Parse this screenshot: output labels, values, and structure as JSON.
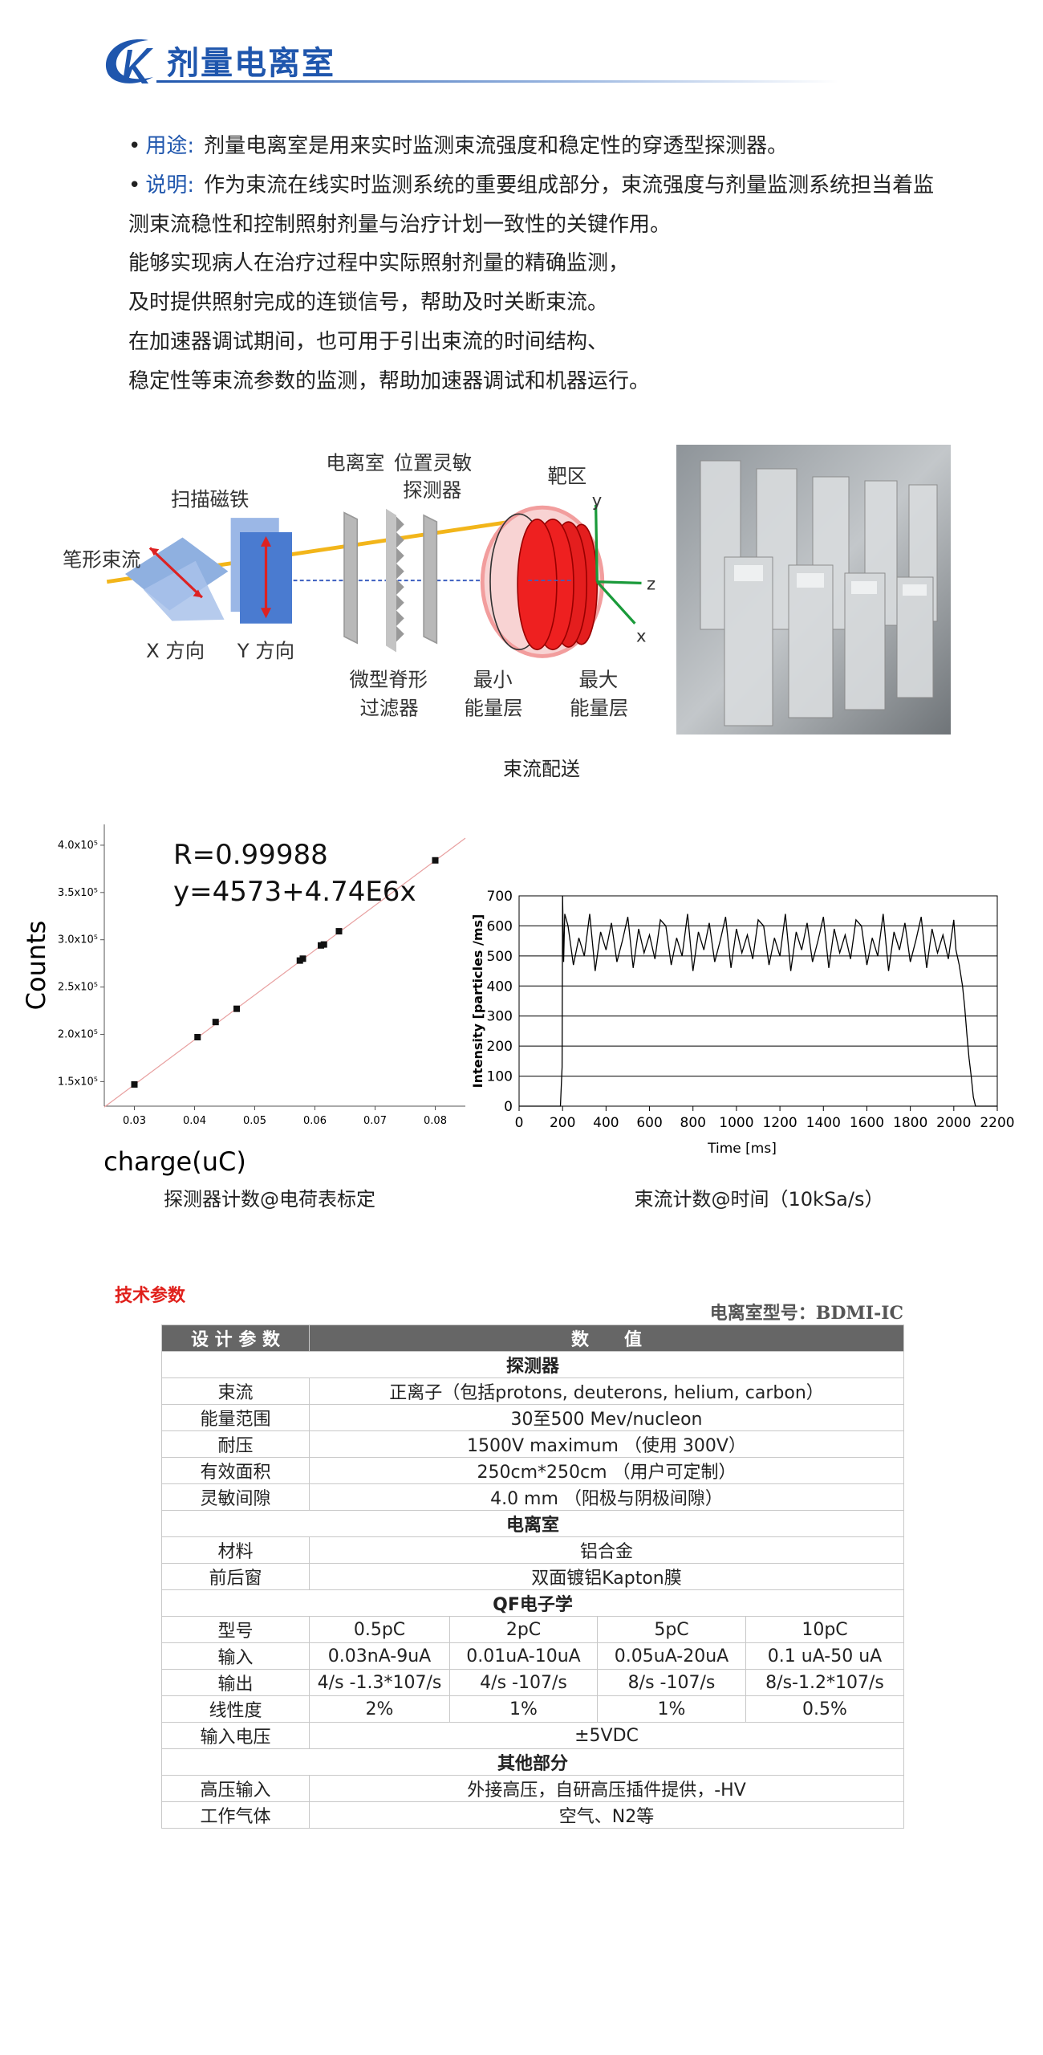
{
  "header": {
    "title": "剂量电离室"
  },
  "intro": {
    "items": [
      {
        "label": "用途:",
        "text": "剂量电离室是用来实时监测束流强度和稳定性的穿透型探测器。"
      },
      {
        "label": "说明:",
        "text": "作为束流在线实时监测系统的重要组成部分，束流强度与剂量监测系统担当着监测束流稳性和控制照射剂量与治疗计划一致性的关键作用。"
      }
    ],
    "paragraphs": [
      "能够实现病人在治疗过程中实际照射剂量的精确监测，",
      "及时提供照射完成的连锁信号，帮助及时关断束流。",
      "在加速器调试期间，也可用于引出束流的时间结构、",
      "稳定性等束流参数的监测，帮助加速器调试和机器运行。"
    ]
  },
  "diagram": {
    "labels": [
      "笔形束流",
      "扫描磁铁",
      "X 方向",
      "Y 方向",
      "电离室",
      "位置灵敏",
      "探测器",
      "靶区",
      "微型脊形",
      "过滤器",
      "最小",
      "能量层",
      "最大",
      "能量层"
    ],
    "axes": [
      "y",
      "z",
      "x"
    ],
    "caption": "束流配送"
  },
  "figures": [
    {
      "type": "scatter",
      "annotations": [
        "R=0.99988",
        "y=4573+4.74E6x"
      ],
      "fit": {
        "intercept": 4573,
        "slope": 4740000
      },
      "xlabel": "charge(uC)",
      "ylabel": "Counts",
      "x": [
        0.03,
        0.0405,
        0.0435,
        0.047,
        0.0575,
        0.058,
        0.061,
        0.0615,
        0.064,
        0.08
      ],
      "values": [
        147000,
        197000,
        213000,
        227000,
        278000,
        280000,
        294000,
        295000,
        309000,
        384000
      ],
      "color": "#111111",
      "xlim": [
        0.025,
        0.085
      ],
      "ylim": [
        124000,
        422000
      ],
      "xticks": [
        0.03,
        0.04,
        0.05,
        0.06,
        0.07,
        0.08
      ],
      "yticks": [
        {
          "value": 150000,
          "label": "1.5x10⁵"
        },
        {
          "value": 200000,
          "label": "2.0x10⁵"
        },
        {
          "value": 250000,
          "label": "2.5x10⁵"
        },
        {
          "value": 300000,
          "label": "3.0x10⁵"
        },
        {
          "value": 350000,
          "label": "3.5x10⁵"
        },
        {
          "value": 400000,
          "label": "4.0x10⁵"
        }
      ],
      "caption": "探测器计数@电荷表标定"
    },
    {
      "type": "line",
      "xlabel": "Time [ms]",
      "ylabel": "Intensity [particles /ms]",
      "color": "#000000",
      "grid": true,
      "x": [
        0,
        190,
        198,
        200,
        205,
        210,
        225,
        250,
        275,
        300,
        325,
        350,
        375,
        400,
        425,
        450,
        475,
        500,
        525,
        550,
        575,
        600,
        625,
        650,
        675,
        700,
        725,
        750,
        775,
        800,
        825,
        850,
        875,
        900,
        925,
        950,
        975,
        1000,
        1025,
        1050,
        1075,
        1100,
        1125,
        1150,
        1175,
        1200,
        1225,
        1250,
        1275,
        1300,
        1325,
        1350,
        1375,
        1400,
        1425,
        1450,
        1475,
        1500,
        1525,
        1550,
        1575,
        1600,
        1625,
        1650,
        1675,
        1700,
        1725,
        1750,
        1775,
        1800,
        1825,
        1850,
        1875,
        1900,
        1925,
        1950,
        1975,
        2000,
        2010,
        2025,
        2040,
        2050,
        2060,
        2070,
        2080,
        2090,
        2100,
        2200
      ],
      "values": [
        0,
        0,
        130,
        700,
        480,
        640,
        600,
        470,
        560,
        500,
        640,
        450,
        580,
        520,
        610,
        480,
        550,
        630,
        460,
        590,
        510,
        570,
        490,
        620,
        600,
        470,
        560,
        500,
        640,
        450,
        580,
        520,
        610,
        480,
        550,
        630,
        460,
        590,
        510,
        570,
        490,
        620,
        600,
        470,
        560,
        500,
        640,
        450,
        580,
        520,
        610,
        480,
        550,
        630,
        460,
        590,
        510,
        570,
        490,
        620,
        600,
        470,
        560,
        500,
        640,
        450,
        580,
        520,
        610,
        480,
        550,
        630,
        460,
        590,
        510,
        570,
        490,
        620,
        520,
        470,
        400,
        330,
        240,
        160,
        100,
        30,
        0,
        0
      ],
      "xlim": [
        0,
        2200
      ],
      "ylim": [
        0,
        700
      ],
      "xticks": [
        0,
        200,
        400,
        600,
        800,
        1000,
        1200,
        1400,
        1600,
        1800,
        2000,
        2200
      ],
      "yticks": [
        0,
        100,
        200,
        300,
        400,
        500,
        600,
        700
      ],
      "caption": "束流计数@时间（10kSa/s）"
    }
  ],
  "specs": {
    "title": "技术参数",
    "model": "电离室型号：BDMI-IC",
    "table": {
      "header": [
        "设 计 参 数",
        "数　　值"
      ],
      "rows": [
        [
          "探测器"
        ],
        [
          "束流",
          "正离子（包括protons, deuterons, helium, carbon）"
        ],
        [
          "能量范围",
          "30至500 Mev/nucleon"
        ],
        [
          "耐压",
          "1500V maximum （使用 300V）"
        ],
        [
          "有效面积",
          "250cm*250cm （用户可定制）"
        ],
        [
          "灵敏间隙",
          "4.0 mm （阳极与阴极间隙）"
        ],
        [
          "电离室"
        ],
        [
          "材料",
          "铝合金"
        ],
        [
          "前后窗",
          "双面镀铝Kapton膜"
        ],
        [
          "QF电子学"
        ],
        [
          "型号",
          "0.5pC",
          "2pC",
          "5pC",
          "10pC"
        ],
        [
          "输入",
          "0.03nA-9uA",
          "0.01uA-10uA",
          "0.05uA-20uA",
          "0.1 uA-50 uA"
        ],
        [
          "输出",
          "4/s -1.3*107/s",
          "4/s -107/s",
          "8/s -107/s",
          "8/s-1.2*107/s"
        ],
        [
          "线性度",
          "2%",
          "1%",
          "1%",
          "0.5%"
        ],
        [
          "输入电压",
          "±5VDC"
        ],
        [
          "其他部分"
        ],
        [
          "高压输入",
          "外接高压，自研高压插件提供，-HV"
        ],
        [
          "工作气体",
          "空气、N2等"
        ]
      ]
    }
  }
}
